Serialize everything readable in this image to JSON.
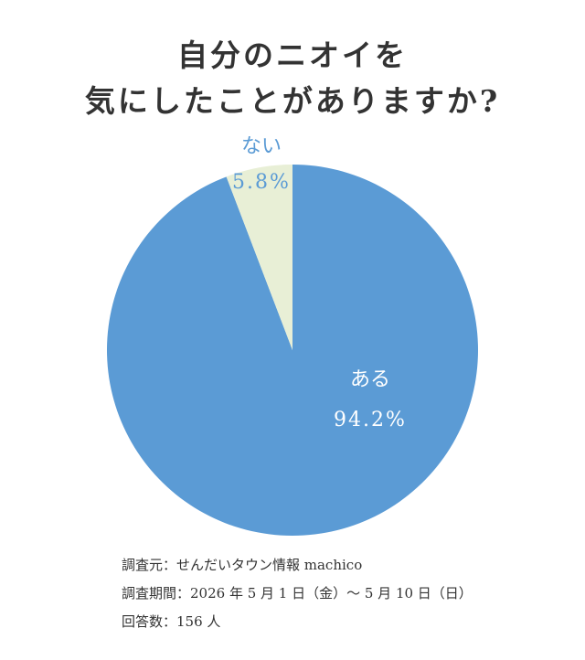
{
  "title": {
    "line1": "自分のニオイを",
    "line2": "気にしたことがありますか?"
  },
  "chart_data": {
    "type": "pie",
    "categories": [
      "ある",
      "ない"
    ],
    "values": [
      94.2,
      5.8
    ],
    "value_labels": [
      "94.2%",
      "5.8%"
    ],
    "colors": [
      "#5b9bd5",
      "#e8efd6"
    ],
    "label_colors": [
      "#ffffff",
      "#5b9bd5"
    ],
    "start": "12 o'clock",
    "direction": "clockwise"
  },
  "source": {
    "line1": "調査元：せんだいタウン情報 machico",
    "line2": "調査期間：2026 年 5 月 1 日（金）～ 5 月 10 日（日）",
    "line3": "回答数：156 人"
  }
}
